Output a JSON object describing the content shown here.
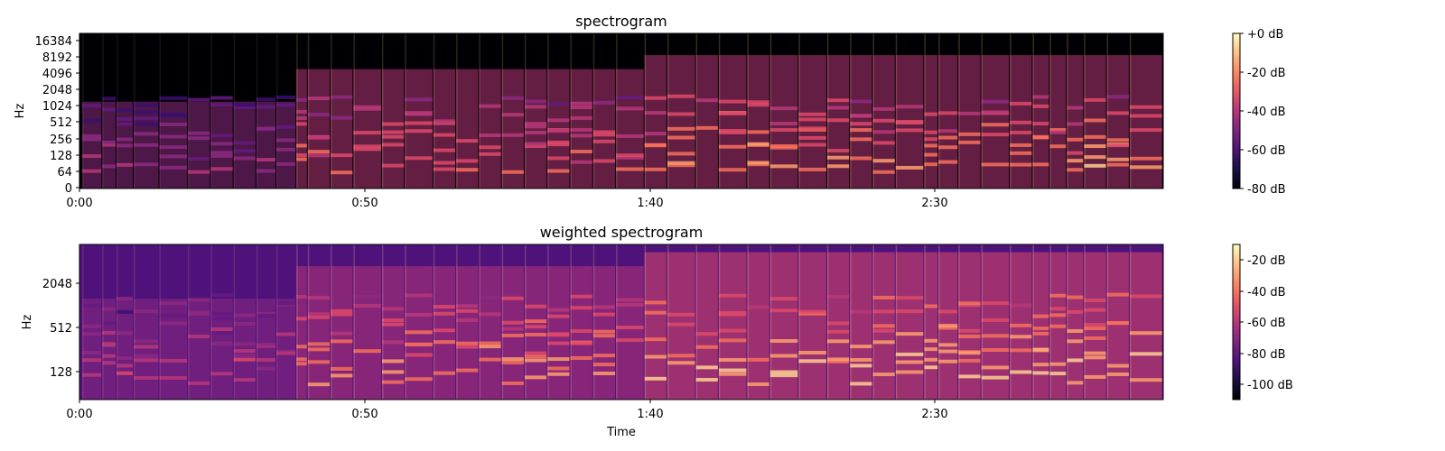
{
  "chart_data": [
    {
      "type": "heatmap",
      "title": "spectrogram",
      "xlabel": "",
      "ylabel": "Hz",
      "x_ticks": [
        "0:00",
        "0:50",
        "1:40",
        "2:30"
      ],
      "x_tick_seconds": [
        0,
        50,
        100,
        150
      ],
      "x_range_seconds": [
        0,
        190
      ],
      "y_scale": "log",
      "y_ticks": [
        "0",
        "64",
        "128",
        "256",
        "512",
        "1024",
        "2048",
        "4096",
        "8192",
        "16384"
      ],
      "colormap": "magma",
      "colorbar_ticks": [
        "+0 dB",
        "-20 dB",
        "-40 dB",
        "-60 dB",
        "-80 dB"
      ],
      "colorbar_range_db": [
        -80,
        0
      ],
      "onset_seconds": [
        0.5,
        4,
        6.5,
        9.5,
        14,
        19,
        23,
        27,
        31,
        34.5,
        38,
        40,
        44,
        48,
        53,
        57,
        62,
        66,
        70,
        74,
        78,
        82,
        86,
        90,
        94,
        99,
        103,
        108,
        112,
        117,
        121,
        126,
        131,
        135,
        139,
        143,
        148,
        150.5,
        154,
        158,
        163,
        167,
        170,
        173,
        176,
        180,
        184
      ],
      "note_band_hz": [
        70,
        110,
        160,
        220,
        300,
        420,
        600,
        850,
        1200
      ]
    },
    {
      "type": "heatmap",
      "title": "weighted spectrogram",
      "xlabel": "Time",
      "ylabel": "Hz",
      "x_ticks": [
        "0:00",
        "0:50",
        "1:40",
        "2:30"
      ],
      "x_tick_seconds": [
        0,
        50,
        100,
        150
      ],
      "x_range_seconds": [
        0,
        190
      ],
      "y_scale": "log",
      "y_ticks": [
        "128",
        "512",
        "2048"
      ],
      "colormap": "magma",
      "colorbar_ticks": [
        "-20 dB",
        "-40 dB",
        "-60 dB",
        "-80 dB",
        "-100 dB"
      ],
      "colorbar_range_db": [
        -110,
        -10
      ]
    }
  ]
}
